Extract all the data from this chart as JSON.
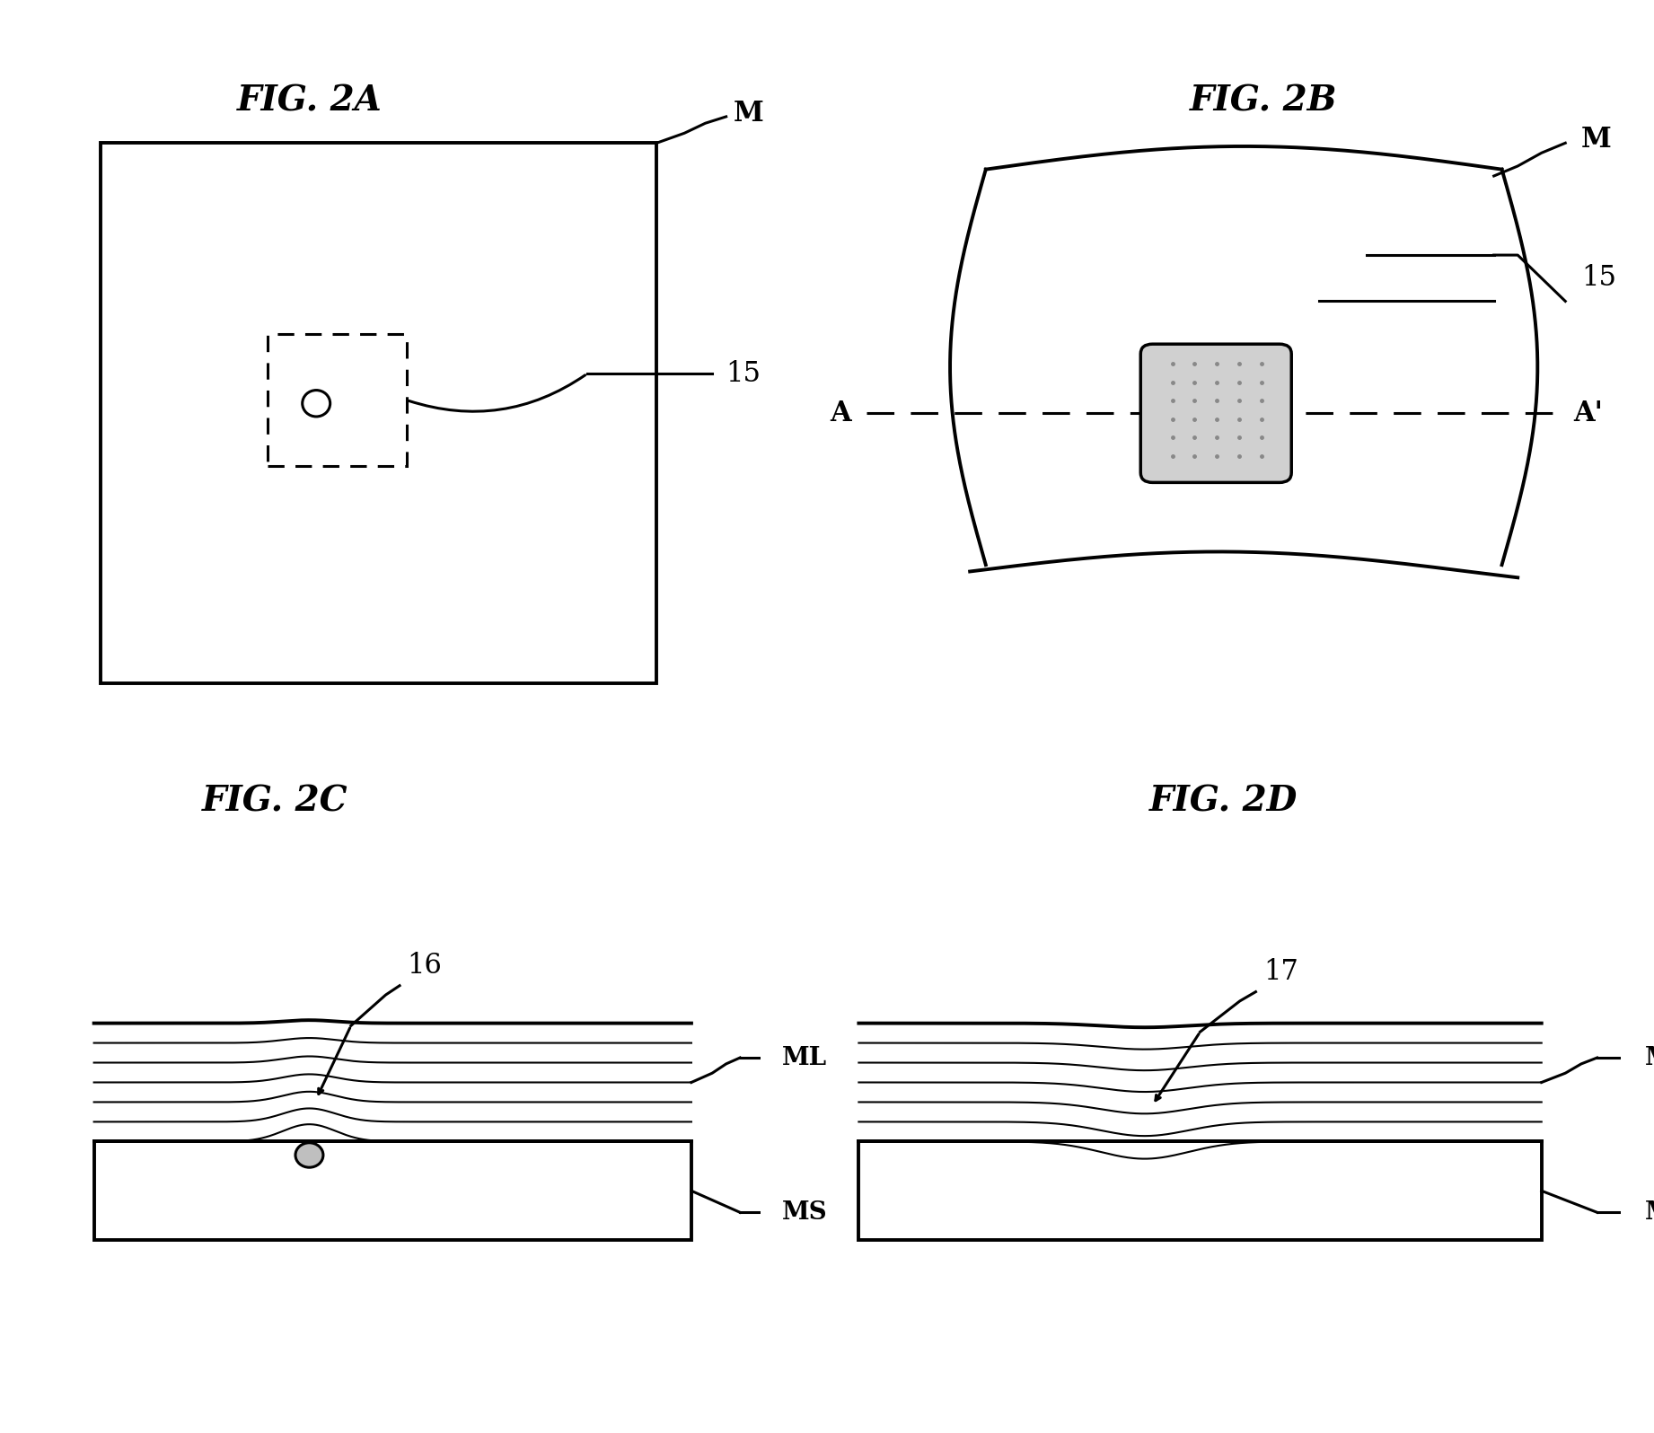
{
  "bg_color": "#ffffff",
  "fig_width": 18.42,
  "fig_height": 15.96,
  "panel_titles": {
    "2A": "FIG. 2A",
    "2B": "FIG. 2B",
    "2C": "FIG. 2C",
    "2D": "FIG. 2D"
  },
  "title_fontsize": 28,
  "label_fontsize": 22,
  "line_lw": 2.2,
  "thick_lw": 2.8
}
